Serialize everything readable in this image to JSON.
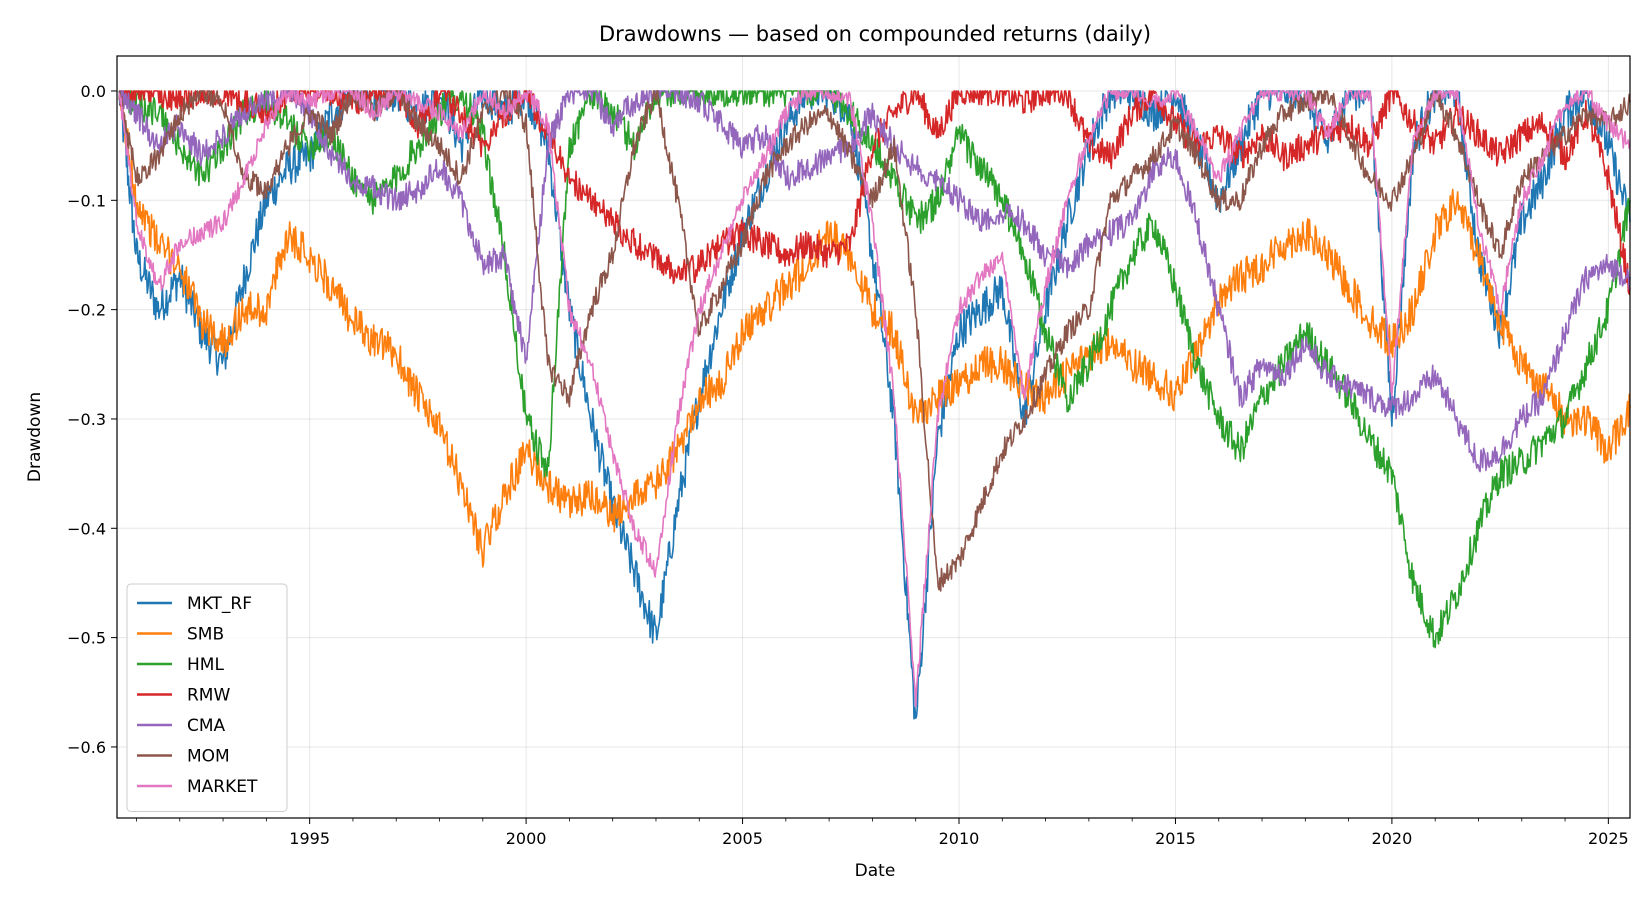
{
  "chart_data": {
    "type": "line",
    "title": "Drawdowns — based on compounded returns (daily)",
    "xlabel": "Date",
    "ylabel": "Drawdown",
    "xlim": [
      1990.55,
      2025.5
    ],
    "ylim": [
      -0.665,
      0.032
    ],
    "x_ticks": [
      1995,
      2000,
      2005,
      2010,
      2015,
      2020,
      2025
    ],
    "x_tick_labels": [
      "1995",
      "2000",
      "2005",
      "2010",
      "2015",
      "2020",
      "2025"
    ],
    "y_ticks": [
      0.0,
      -0.1,
      -0.2,
      -0.3,
      -0.4,
      -0.5,
      -0.6
    ],
    "y_tick_labels": [
      "0.0",
      "−0.1",
      "−0.2",
      "−0.3",
      "−0.4",
      "−0.5",
      "−0.6"
    ],
    "grid": true,
    "legend_position": "lower-left",
    "x": [
      1990.6,
      1991,
      1991.5,
      1992,
      1992.5,
      1993,
      1993.5,
      1994,
      1994.5,
      1995,
      1995.5,
      1996,
      1996.5,
      1997,
      1997.5,
      1998,
      1998.5,
      1999,
      1999.5,
      2000,
      2000.5,
      2001,
      2001.5,
      2002,
      2002.5,
      2003,
      2003.5,
      2004,
      2004.5,
      2005,
      2005.5,
      2006,
      2006.5,
      2007,
      2007.5,
      2008,
      2008.5,
      2009,
      2009.5,
      2010,
      2010.5,
      2011,
      2011.5,
      2012,
      2012.5,
      2013,
      2013.5,
      2014,
      2014.5,
      2015,
      2015.5,
      2016,
      2016.5,
      2017,
      2017.5,
      2018,
      2018.5,
      2019,
      2019.5,
      2020,
      2020.5,
      2021,
      2021.5,
      2022,
      2022.5,
      2023,
      2023.5,
      2024,
      2024.5,
      2025,
      2025.5
    ],
    "series": [
      {
        "name": "MKT_RF",
        "color": "#1f77b4",
        "values": [
          0,
          -0.15,
          -0.2,
          -0.17,
          -0.22,
          -0.25,
          -0.17,
          -0.1,
          -0.07,
          -0.06,
          -0.02,
          0,
          -0.01,
          0,
          -0.02,
          0,
          -0.05,
          0,
          -0.02,
          0,
          -0.05,
          -0.2,
          -0.3,
          -0.38,
          -0.44,
          -0.5,
          -0.38,
          -0.28,
          -0.2,
          -0.13,
          -0.08,
          -0.03,
          0,
          0,
          -0.02,
          -0.15,
          -0.3,
          -0.58,
          -0.32,
          -0.22,
          -0.2,
          -0.18,
          -0.3,
          -0.2,
          -0.12,
          -0.05,
          0,
          0,
          -0.02,
          0,
          -0.05,
          -0.1,
          -0.05,
          0,
          0,
          0,
          -0.05,
          0,
          0,
          -0.3,
          -0.05,
          0,
          0,
          -0.15,
          -0.22,
          -0.12,
          -0.08,
          -0.02,
          0,
          -0.05,
          -0.12
        ]
      },
      {
        "name": "SMB",
        "color": "#ff7f0e",
        "values": [
          0,
          -0.1,
          -0.14,
          -0.16,
          -0.21,
          -0.23,
          -0.2,
          -0.2,
          -0.13,
          -0.15,
          -0.18,
          -0.21,
          -0.23,
          -0.24,
          -0.28,
          -0.31,
          -0.36,
          -0.42,
          -0.37,
          -0.33,
          -0.36,
          -0.38,
          -0.37,
          -0.39,
          -0.37,
          -0.36,
          -0.33,
          -0.28,
          -0.27,
          -0.22,
          -0.2,
          -0.18,
          -0.16,
          -0.13,
          -0.15,
          -0.2,
          -0.22,
          -0.3,
          -0.28,
          -0.27,
          -0.25,
          -0.25,
          -0.27,
          -0.28,
          -0.26,
          -0.24,
          -0.23,
          -0.25,
          -0.26,
          -0.28,
          -0.24,
          -0.19,
          -0.17,
          -0.16,
          -0.14,
          -0.13,
          -0.15,
          -0.18,
          -0.21,
          -0.23,
          -0.2,
          -0.13,
          -0.1,
          -0.15,
          -0.21,
          -0.25,
          -0.27,
          -0.3,
          -0.3,
          -0.33,
          -0.29
        ]
      },
      {
        "name": "HML",
        "color": "#2ca02c",
        "values": [
          0,
          -0.01,
          -0.02,
          -0.05,
          -0.08,
          -0.05,
          -0.02,
          -0.01,
          -0.03,
          -0.05,
          -0.04,
          -0.08,
          -0.1,
          -0.08,
          -0.05,
          -0.02,
          0,
          -0.04,
          -0.15,
          -0.3,
          -0.35,
          -0.05,
          0,
          -0.02,
          -0.05,
          0,
          0,
          0,
          0,
          0,
          0,
          0,
          0,
          0,
          -0.02,
          -0.05,
          -0.08,
          -0.12,
          -0.1,
          -0.04,
          -0.07,
          -0.1,
          -0.15,
          -0.22,
          -0.28,
          -0.25,
          -0.2,
          -0.15,
          -0.12,
          -0.18,
          -0.25,
          -0.3,
          -0.33,
          -0.28,
          -0.25,
          -0.22,
          -0.25,
          -0.28,
          -0.32,
          -0.35,
          -0.45,
          -0.5,
          -0.46,
          -0.4,
          -0.35,
          -0.34,
          -0.32,
          -0.3,
          -0.25,
          -0.2,
          -0.1
        ]
      },
      {
        "name": "RMW",
        "color": "#d62728",
        "values": [
          0,
          0,
          0,
          -0.01,
          0,
          0,
          -0.01,
          -0.02,
          0,
          0,
          0,
          -0.01,
          0,
          0,
          -0.03,
          0,
          -0.02,
          -0.05,
          -0.02,
          0,
          -0.04,
          -0.08,
          -0.1,
          -0.12,
          -0.14,
          -0.15,
          -0.17,
          -0.16,
          -0.14,
          -0.13,
          -0.14,
          -0.15,
          -0.14,
          -0.15,
          -0.14,
          -0.05,
          -0.02,
          0,
          -0.04,
          0,
          0,
          0,
          -0.01,
          0,
          0,
          -0.05,
          -0.06,
          -0.02,
          0,
          -0.03,
          -0.05,
          -0.04,
          -0.06,
          -0.04,
          -0.06,
          -0.05,
          -0.04,
          -0.03,
          -0.05,
          0,
          -0.03,
          -0.05,
          -0.02,
          -0.04,
          -0.06,
          -0.04,
          -0.03,
          -0.06,
          -0.02,
          -0.08,
          -0.18
        ]
      },
      {
        "name": "CMA",
        "color": "#9467bd",
        "values": [
          0,
          -0.02,
          -0.05,
          -0.03,
          -0.06,
          -0.04,
          -0.02,
          -0.01,
          0,
          -0.02,
          -0.06,
          -0.08,
          -0.09,
          -0.1,
          -0.09,
          -0.07,
          -0.1,
          -0.16,
          -0.15,
          -0.25,
          -0.05,
          0,
          0,
          -0.03,
          -0.01,
          0,
          0,
          -0.01,
          -0.03,
          -0.05,
          -0.04,
          -0.08,
          -0.07,
          -0.06,
          -0.05,
          -0.02,
          -0.05,
          -0.07,
          -0.08,
          -0.1,
          -0.12,
          -0.11,
          -0.12,
          -0.15,
          -0.16,
          -0.14,
          -0.13,
          -0.12,
          -0.07,
          -0.06,
          -0.12,
          -0.2,
          -0.28,
          -0.25,
          -0.26,
          -0.23,
          -0.26,
          -0.27,
          -0.28,
          -0.29,
          -0.28,
          -0.26,
          -0.3,
          -0.34,
          -0.33,
          -0.3,
          -0.28,
          -0.22,
          -0.17,
          -0.16,
          -0.17
        ]
      },
      {
        "name": "MOM",
        "color": "#8c564b",
        "values": [
          0,
          -0.08,
          -0.06,
          -0.02,
          0,
          -0.01,
          -0.08,
          -0.09,
          -0.05,
          -0.02,
          -0.04,
          0,
          -0.02,
          0,
          -0.03,
          -0.05,
          -0.08,
          -0.02,
          0,
          -0.03,
          -0.25,
          -0.28,
          -0.2,
          -0.15,
          -0.05,
          0,
          -0.1,
          -0.22,
          -0.18,
          -0.14,
          -0.08,
          -0.05,
          -0.03,
          -0.02,
          -0.06,
          -0.1,
          -0.05,
          -0.2,
          -0.45,
          -0.43,
          -0.38,
          -0.33,
          -0.3,
          -0.26,
          -0.22,
          -0.2,
          -0.1,
          -0.08,
          -0.06,
          -0.03,
          -0.06,
          -0.1,
          -0.1,
          -0.05,
          -0.02,
          -0.01,
          0,
          -0.04,
          -0.08,
          -0.1,
          -0.06,
          0,
          -0.04,
          -0.1,
          -0.15,
          -0.08,
          -0.06,
          -0.04,
          -0.02,
          -0.03,
          -0.01
        ]
      },
      {
        "name": "MARKET",
        "color": "#e377c2",
        "values": [
          0,
          -0.12,
          -0.18,
          -0.14,
          -0.13,
          -0.12,
          -0.08,
          -0.03,
          0,
          -0.01,
          0,
          0,
          -0.02,
          0,
          -0.01,
          -0.02,
          -0.04,
          0,
          -0.02,
          0,
          -0.03,
          -0.2,
          -0.25,
          -0.33,
          -0.4,
          -0.44,
          -0.3,
          -0.2,
          -0.15,
          -0.1,
          -0.06,
          -0.02,
          0,
          0,
          -0.01,
          -0.12,
          -0.28,
          -0.56,
          -0.3,
          -0.2,
          -0.17,
          -0.15,
          -0.28,
          -0.18,
          -0.1,
          -0.04,
          0,
          0,
          -0.01,
          0,
          -0.04,
          -0.08,
          -0.04,
          0,
          0,
          0,
          -0.04,
          0,
          0,
          -0.28,
          -0.04,
          0,
          0,
          -0.12,
          -0.2,
          -0.1,
          -0.06,
          -0.01,
          0,
          -0.03,
          -0.05
        ]
      }
    ]
  }
}
